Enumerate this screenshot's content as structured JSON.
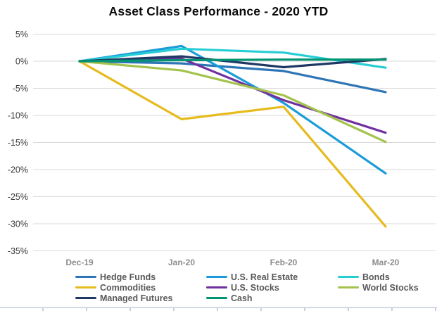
{
  "chart_data": {
    "type": "line",
    "title": "Asset Class Performance - 2020 YTD",
    "categories": [
      "Dec-19",
      "Jan-20",
      "Feb-20",
      "Mar-20"
    ],
    "series": [
      {
        "name": "Hedge Funds",
        "color": "#2E75B6",
        "values": [
          0,
          -0.4,
          -1.8,
          -5.7
        ]
      },
      {
        "name": "U.S. Real Estate",
        "color": "#1B9CD9",
        "values": [
          0,
          2.8,
          -7.7,
          -20.7
        ]
      },
      {
        "name": "Bonds",
        "color": "#27CDD4",
        "values": [
          0,
          2.3,
          1.6,
          -1.2
        ]
      },
      {
        "name": "Commodities",
        "color": "#E6BB1E",
        "values": [
          0,
          -10.7,
          -8.4,
          -30.5
        ]
      },
      {
        "name": "U.S. Stocks",
        "color": "#7030A0",
        "values": [
          0,
          0.5,
          -7.2,
          -13.2
        ]
      },
      {
        "name": "World Stocks",
        "color": "#A3C34D",
        "values": [
          0,
          -1.7,
          -6.3,
          -14.9
        ]
      },
      {
        "name": "Managed Futures",
        "color": "#1F3864",
        "values": [
          0,
          0.9,
          -1.1,
          0.4
        ]
      },
      {
        "name": "Cash",
        "color": "#029473",
        "values": [
          0,
          0.2,
          0.3,
          0.3
        ]
      }
    ],
    "xlabel": "",
    "ylabel": "",
    "ylim": [
      -35,
      5
    ],
    "ytick_step": 5,
    "yticks": [
      5,
      0,
      -5,
      -10,
      -15,
      -20,
      -25,
      -30,
      -35
    ],
    "ytick_labels": [
      "5%",
      "0%",
      "-5%",
      "-10%",
      "-15%",
      "-20%",
      "-25%",
      "-30%",
      "-35%"
    ],
    "grid": "horizontal",
    "legend_position": "bottom"
  }
}
